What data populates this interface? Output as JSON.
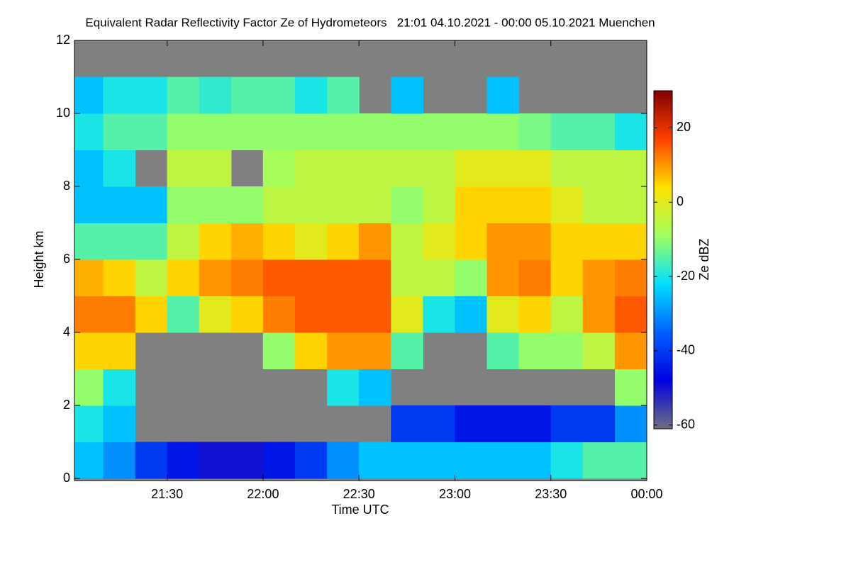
{
  "chart_data": {
    "type": "heatmap",
    "title": "Equivalent Radar Reflectivity Factor Ze of Hydrometeors   21:01 04.10.2021 - 00:00 05.10.2021 Muenchen",
    "x_label": "Time UTC",
    "y_label": "Height km",
    "colorbar_label": "Ze dBZ",
    "x": [
      21.083,
      21.25,
      21.417,
      21.583,
      21.75,
      21.917,
      22.083,
      22.25,
      22.417,
      22.583,
      22.75,
      22.917,
      23.083,
      23.25,
      23.417,
      23.583,
      23.75,
      23.917
    ],
    "y": [
      0.5,
      1.5,
      2.5,
      3.5,
      4.5,
      5.5,
      6.5,
      7.5,
      8.5,
      9.5,
      10.5
    ],
    "z": [
      [
        -25,
        -30,
        -40,
        -45,
        -50,
        -50,
        -45,
        -40,
        -30,
        -25,
        -25,
        -25,
        -25,
        -25,
        -25,
        -20,
        -15,
        -15
      ],
      [
        -20,
        -25,
        null,
        null,
        null,
        null,
        null,
        null,
        null,
        null,
        -40,
        -40,
        -45,
        -45,
        -45,
        -40,
        -40,
        -30
      ],
      [
        -10,
        -20,
        null,
        null,
        null,
        null,
        null,
        null,
        -20,
        -25,
        null,
        null,
        null,
        null,
        null,
        null,
        null,
        -10
      ],
      [
        5,
        5,
        null,
        null,
        null,
        null,
        -10,
        5,
        10,
        10,
        -15,
        null,
        null,
        -15,
        -10,
        -10,
        -5,
        10
      ],
      [
        12,
        12,
        5,
        -15,
        0,
        5,
        12,
        15,
        15,
        15,
        0,
        -20,
        -25,
        0,
        5,
        -5,
        10,
        15
      ],
      [
        8,
        5,
        -5,
        5,
        10,
        12,
        15,
        15,
        15,
        15,
        -5,
        -5,
        -10,
        10,
        12,
        5,
        10,
        12
      ],
      [
        -15,
        -15,
        -15,
        -5,
        5,
        8,
        5,
        0,
        5,
        10,
        -5,
        0,
        5,
        10,
        10,
        5,
        5,
        5
      ],
      [
        -25,
        -25,
        -25,
        -10,
        -10,
        -10,
        -5,
        -5,
        -5,
        -5,
        -10,
        -5,
        5,
        5,
        5,
        0,
        -5,
        -5
      ],
      [
        -25,
        -20,
        null,
        -5,
        -5,
        null,
        -8,
        -5,
        -5,
        -5,
        -5,
        -5,
        0,
        0,
        0,
        -5,
        -5,
        -5
      ],
      [
        -20,
        -15,
        -15,
        -10,
        -10,
        -10,
        -10,
        -10,
        -10,
        -10,
        -10,
        -10,
        -10,
        -10,
        -12,
        -15,
        -15,
        -20
      ],
      [
        -25,
        -20,
        -20,
        -15,
        -18,
        -15,
        -15,
        -20,
        -15,
        null,
        -25,
        null,
        null,
        -25,
        null,
        null,
        null,
        null
      ]
    ],
    "xlim": [
      21.017,
      24
    ],
    "xticks": [
      {
        "value": 21.5,
        "label": "21:30"
      },
      {
        "value": 22,
        "label": "22:00"
      },
      {
        "value": 22.5,
        "label": "22:30"
      },
      {
        "value": 23,
        "label": "23:00"
      },
      {
        "value": 23.5,
        "label": "23:30"
      },
      {
        "value": 24,
        "label": "00:00"
      }
    ],
    "ylim": [
      0,
      12
    ],
    "yticks": [
      0,
      2,
      4,
      6,
      8,
      10,
      12
    ],
    "zlim": [
      -61,
      30
    ],
    "zticks": [
      -60,
      -40,
      -20,
      0,
      20
    ],
    "colors": [
      "#707080",
      "#0000e0",
      "#0060ff",
      "#00e0ff",
      "#a0ff60",
      "#ffe000",
      "#ff4000",
      "#800000"
    ],
    "missing_color": "#808080"
  }
}
